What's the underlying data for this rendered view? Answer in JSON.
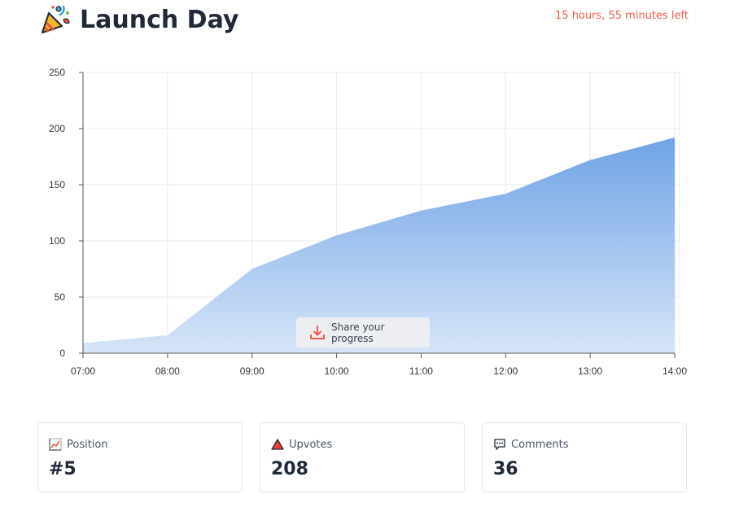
{
  "header": {
    "title": "Launch Day",
    "time_left": "15 hours, 55 minutes left",
    "logo_icon": "party-popper-icon"
  },
  "share": {
    "label": "Share your progress",
    "icon": "download-icon"
  },
  "stats": [
    {
      "key": "position",
      "label": "Position",
      "value": "#5",
      "icon": "chart-increasing-icon"
    },
    {
      "key": "upvotes",
      "label": "Upvotes",
      "value": "208",
      "icon": "red-triangle-icon"
    },
    {
      "key": "comments",
      "label": "Comments",
      "value": "36",
      "icon": "speech-bubble-icon"
    }
  ],
  "colors": {
    "accent": "#ef5b50",
    "area_top": "#6fa3e6",
    "area_bottom": "#d6e5f8"
  },
  "chart_data": {
    "type": "area",
    "title": "",
    "xlabel": "",
    "ylabel": "",
    "categories": [
      "07:00",
      "08:00",
      "09:00",
      "10:00",
      "11:00",
      "12:00",
      "13:00",
      "14:00"
    ],
    "values": [
      9,
      16,
      75,
      105,
      127,
      142,
      172,
      192
    ],
    "ylim": [
      0,
      250
    ],
    "yticks": [
      0,
      50,
      100,
      150,
      200,
      250
    ],
    "grid": true
  }
}
